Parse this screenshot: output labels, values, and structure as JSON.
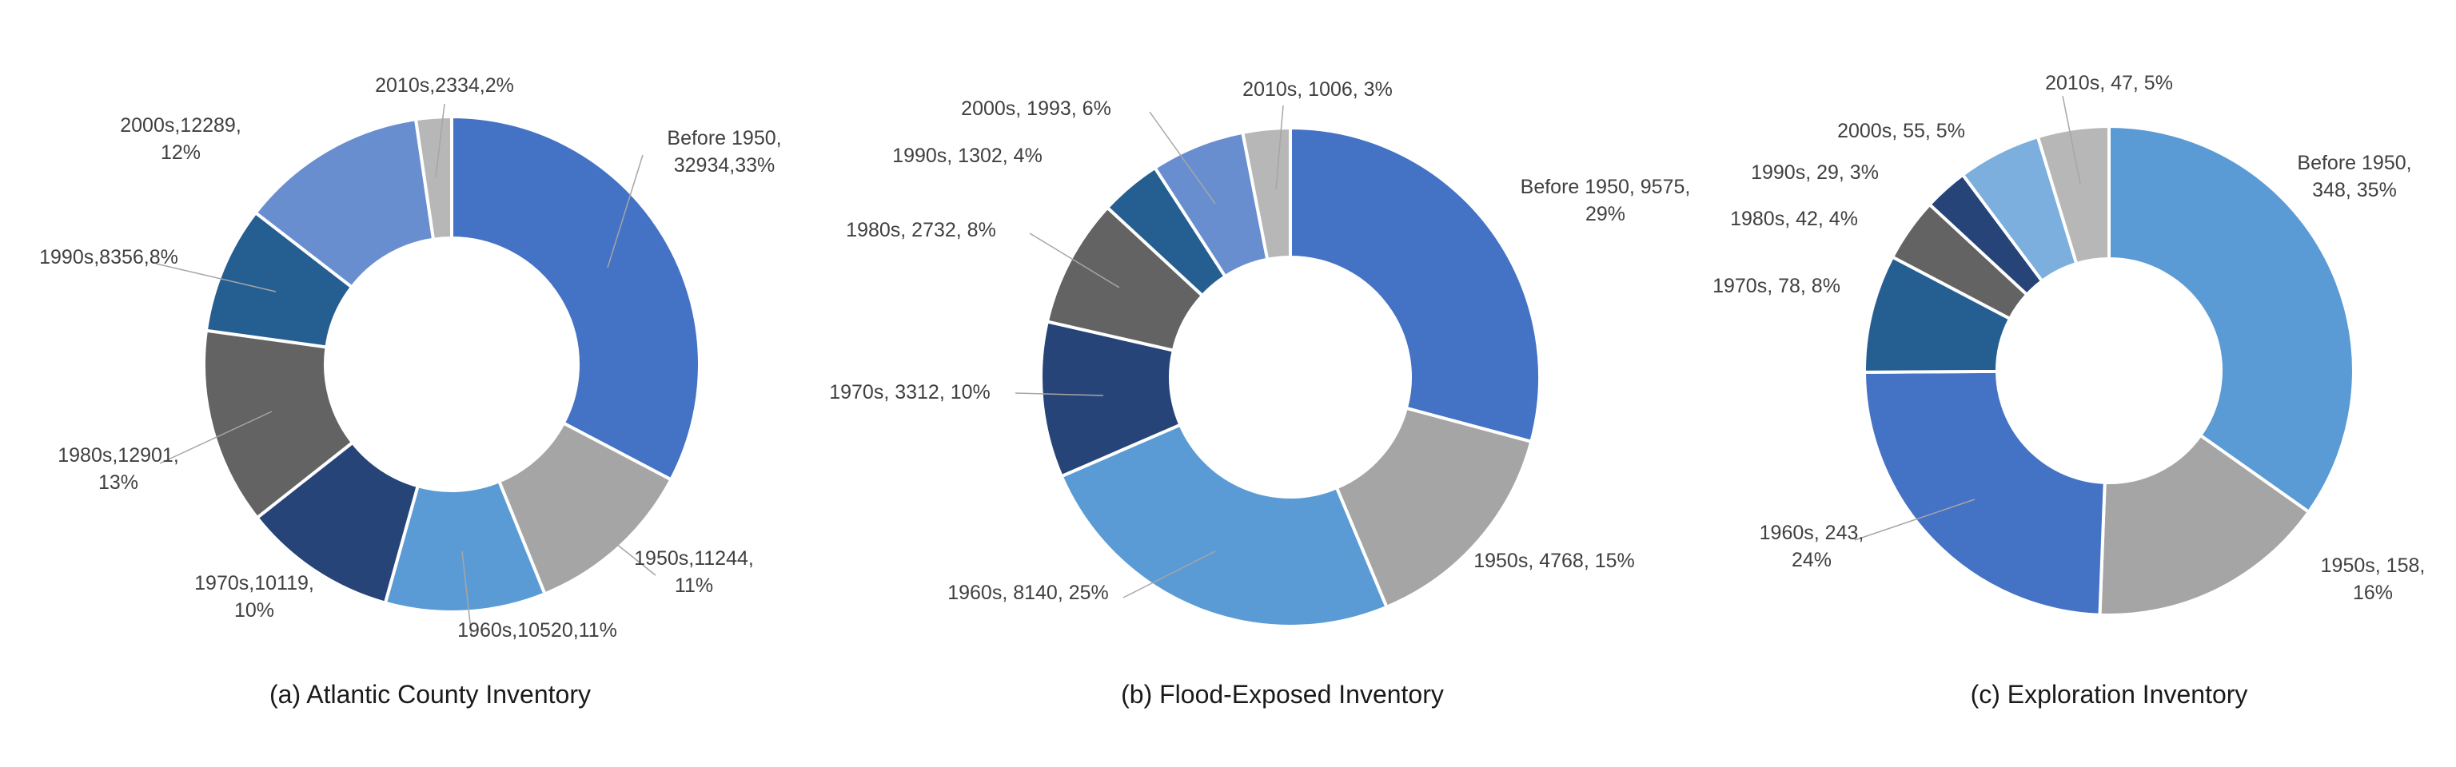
{
  "chart_data": [
    {
      "type": "donut",
      "caption": "(a) Atlantic County Inventory",
      "slices": [
        {
          "label": "Before 1950",
          "value": 32934,
          "pct": "33%",
          "color": "#4472C4",
          "display": [
            "Before 1950,",
            "32934,33%"
          ]
        },
        {
          "label": "1950s",
          "value": 11244,
          "pct": "11%",
          "color": "#A5A5A5",
          "display": [
            "1950s,11244,",
            "11%"
          ]
        },
        {
          "label": "1960s",
          "value": 10520,
          "pct": "11%",
          "color": "#5B9BD5",
          "display": [
            "1960s,10520,11%"
          ]
        },
        {
          "label": "1970s",
          "value": 10119,
          "pct": "10%",
          "color": "#264478",
          "display": [
            "1970s,10119,",
            "10%"
          ]
        },
        {
          "label": "1980s",
          "value": 12901,
          "pct": "13%",
          "color": "#636363",
          "display": [
            "1980s,12901,",
            "13%"
          ]
        },
        {
          "label": "1990s",
          "value": 8356,
          "pct": "8%",
          "color": "#255E91",
          "display": [
            "1990s,8356,8%"
          ]
        },
        {
          "label": "2000s",
          "value": 12289,
          "pct": "12%",
          "color": "#698ED0",
          "display": [
            "2000s,12289,",
            "12%"
          ]
        },
        {
          "label": "2010s",
          "value": 2334,
          "pct": "2%",
          "color": "#B7B7B7",
          "display": [
            "2010s,2334,2%"
          ]
        }
      ]
    },
    {
      "type": "donut",
      "caption": "(b) Flood-Exposed Inventory",
      "slices": [
        {
          "label": "Before 1950",
          "value": 9575,
          "pct": "29%",
          "color": "#4472C4",
          "display": [
            "Before 1950, 9575,",
            "29%"
          ]
        },
        {
          "label": "1950s",
          "value": 4768,
          "pct": "15%",
          "color": "#A5A5A5",
          "display": [
            "1950s, 4768, 15%"
          ]
        },
        {
          "label": "1960s",
          "value": 8140,
          "pct": "25%",
          "color": "#5B9BD5",
          "display": [
            "1960s, 8140, 25%"
          ]
        },
        {
          "label": "1970s",
          "value": 3312,
          "pct": "10%",
          "color": "#264478",
          "display": [
            "1970s, 3312, 10%"
          ]
        },
        {
          "label": "1980s",
          "value": 2732,
          "pct": "8%",
          "color": "#636363",
          "display": [
            "1980s, 2732, 8%"
          ]
        },
        {
          "label": "1990s",
          "value": 1302,
          "pct": "4%",
          "color": "#255E91",
          "display": [
            "1990s, 1302, 4%"
          ]
        },
        {
          "label": "2000s",
          "value": 1993,
          "pct": "6%",
          "color": "#698ED0",
          "display": [
            "2000s, 1993, 6%"
          ]
        },
        {
          "label": "2010s",
          "value": 1006,
          "pct": "3%",
          "color": "#B7B7B7",
          "display": [
            "2010s, 1006, 3%"
          ]
        }
      ]
    },
    {
      "type": "donut",
      "caption": "(c) Exploration Inventory",
      "slices": [
        {
          "label": "Before 1950",
          "value": 348,
          "pct": "35%",
          "color": "#5B9BD5",
          "display": [
            "Before 1950,",
            "348, 35%"
          ]
        },
        {
          "label": "1950s",
          "value": 158,
          "pct": "16%",
          "color": "#A5A5A5",
          "display": [
            "1950s, 158,",
            "16%"
          ]
        },
        {
          "label": "1960s",
          "value": 243,
          "pct": "24%",
          "color": "#4472C4",
          "display": [
            "1960s, 243,",
            "24%"
          ]
        },
        {
          "label": "1970s",
          "value": 78,
          "pct": "8%",
          "color": "#255E91",
          "display": [
            "1970s, 78, 8%"
          ]
        },
        {
          "label": "1980s",
          "value": 42,
          "pct": "4%",
          "color": "#636363",
          "display": [
            "1980s, 42, 4%"
          ]
        },
        {
          "label": "1990s",
          "value": 29,
          "pct": "3%",
          "color": "#264478",
          "display": [
            "1990s, 29, 3%"
          ]
        },
        {
          "label": "2000s",
          "value": 55,
          "pct": "5%",
          "color": "#7CAFDD",
          "display": [
            "2000s, 55, 5%"
          ]
        },
        {
          "label": "2010s",
          "value": 47,
          "pct": "5%",
          "color": "#B7B7B7",
          "display": [
            "2010s, 47, 5%"
          ]
        }
      ]
    }
  ]
}
